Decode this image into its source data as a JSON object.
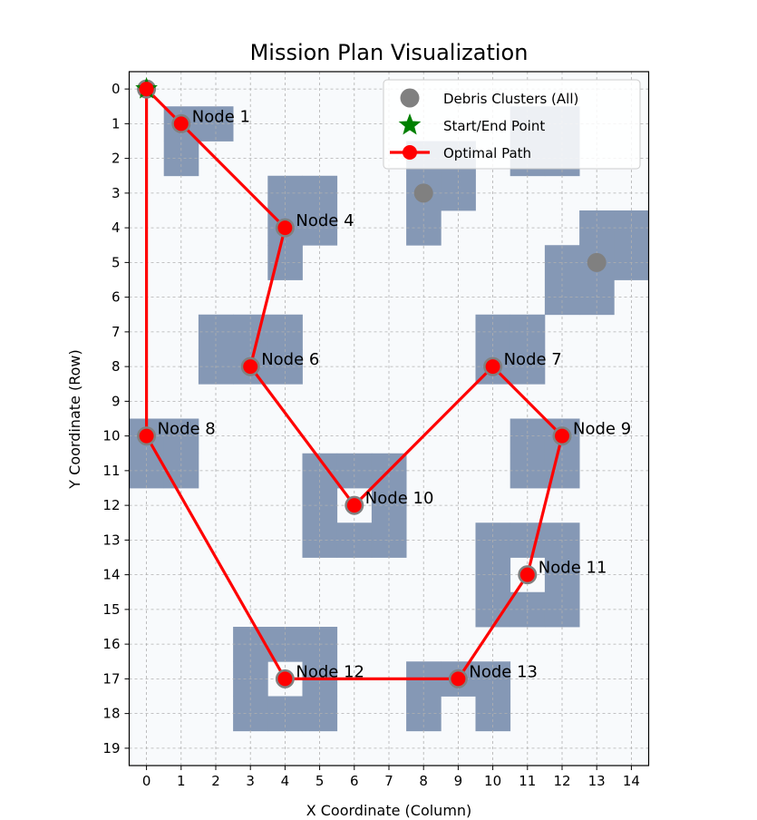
{
  "chart_data": {
    "type": "scatter",
    "title": "Mission Plan Visualization",
    "xlabel": "X Coordinate (Column)",
    "ylabel": "Y Coordinate (Row)",
    "xlim": [
      -0.5,
      14.5
    ],
    "ylim": [
      19.5,
      -0.5
    ],
    "x_ticks": [
      "0",
      "1",
      "2",
      "3",
      "4",
      "5",
      "6",
      "7",
      "8",
      "9",
      "10",
      "11",
      "12",
      "13",
      "14"
    ],
    "y_ticks": [
      "0",
      "1",
      "2",
      "3",
      "4",
      "5",
      "6",
      "7",
      "8",
      "9",
      "10",
      "11",
      "12",
      "13",
      "14",
      "15",
      "16",
      "17",
      "18",
      "19"
    ],
    "grid": true,
    "legend_position": "top-right",
    "colors": {
      "background": "#f8fafc",
      "debris": "#8598b5",
      "cluster_marker": "#808080",
      "path": "#ff0000",
      "start": "#008000"
    },
    "debris_cells": [
      [
        1,
        1
      ],
      [
        2,
        1
      ],
      [
        1,
        2
      ],
      [
        4,
        3
      ],
      [
        5,
        3
      ],
      [
        4,
        4
      ],
      [
        5,
        4
      ],
      [
        4,
        5
      ],
      [
        8,
        2
      ],
      [
        9,
        2
      ],
      [
        8,
        3
      ],
      [
        9,
        3
      ],
      [
        8,
        4
      ],
      [
        11,
        1
      ],
      [
        12,
        1
      ],
      [
        11,
        2
      ],
      [
        12,
        2
      ],
      [
        13,
        4
      ],
      [
        14,
        4
      ],
      [
        12,
        5
      ],
      [
        13,
        5
      ],
      [
        14,
        5
      ],
      [
        12,
        6
      ],
      [
        13,
        6
      ],
      [
        2,
        7
      ],
      [
        3,
        7
      ],
      [
        4,
        7
      ],
      [
        2,
        8
      ],
      [
        3,
        8
      ],
      [
        4,
        8
      ],
      [
        10,
        7
      ],
      [
        11,
        7
      ],
      [
        10,
        8
      ],
      [
        11,
        8
      ],
      [
        0,
        10
      ],
      [
        1,
        10
      ],
      [
        0,
        11
      ],
      [
        1,
        11
      ],
      [
        11,
        10
      ],
      [
        12,
        10
      ],
      [
        11,
        11
      ],
      [
        12,
        11
      ],
      [
        5,
        11
      ],
      [
        6,
        11
      ],
      [
        7,
        11
      ],
      [
        5,
        12
      ],
      [
        7,
        12
      ],
      [
        5,
        13
      ],
      [
        6,
        13
      ],
      [
        7,
        13
      ],
      [
        10,
        13
      ],
      [
        11,
        13
      ],
      [
        12,
        13
      ],
      [
        10,
        14
      ],
      [
        12,
        14
      ],
      [
        10,
        15
      ],
      [
        11,
        15
      ],
      [
        12,
        15
      ],
      [
        3,
        16
      ],
      [
        4,
        16
      ],
      [
        5,
        16
      ],
      [
        3,
        17
      ],
      [
        5,
        17
      ],
      [
        3,
        18
      ],
      [
        4,
        18
      ],
      [
        5,
        18
      ],
      [
        8,
        17
      ],
      [
        9,
        17
      ],
      [
        10,
        17
      ],
      [
        8,
        18
      ],
      [
        10,
        18
      ]
    ],
    "clusters": [
      {
        "x": 0,
        "y": 0
      },
      {
        "x": 1,
        "y": 1
      },
      {
        "x": 4,
        "y": 4
      },
      {
        "x": 8,
        "y": 3
      },
      {
        "x": 13,
        "y": 5
      },
      {
        "x": 3,
        "y": 8
      },
      {
        "x": 10,
        "y": 8
      },
      {
        "x": 0,
        "y": 10
      },
      {
        "x": 12,
        "y": 10
      },
      {
        "x": 6,
        "y": 12
      },
      {
        "x": 11,
        "y": 14
      },
      {
        "x": 4,
        "y": 17
      },
      {
        "x": 9,
        "y": 17
      }
    ],
    "start_point": {
      "x": 0,
      "y": 0
    },
    "path": [
      {
        "x": 0,
        "y": 0
      },
      {
        "x": 1,
        "y": 1
      },
      {
        "x": 4,
        "y": 4
      },
      {
        "x": 3,
        "y": 8
      },
      {
        "x": 6,
        "y": 12
      },
      {
        "x": 10,
        "y": 8
      },
      {
        "x": 12,
        "y": 10
      },
      {
        "x": 11,
        "y": 14
      },
      {
        "x": 9,
        "y": 17
      },
      {
        "x": 4,
        "y": 17
      },
      {
        "x": 0,
        "y": 10
      },
      {
        "x": 0,
        "y": 0
      }
    ],
    "node_labels": [
      {
        "x": 1,
        "y": 1,
        "text": "Node 1"
      },
      {
        "x": 4,
        "y": 4,
        "text": "Node 4"
      },
      {
        "x": 3,
        "y": 8,
        "text": "Node 6"
      },
      {
        "x": 10,
        "y": 8,
        "text": "Node 7"
      },
      {
        "x": 0,
        "y": 10,
        "text": "Node 8"
      },
      {
        "x": 12,
        "y": 10,
        "text": "Node 9"
      },
      {
        "x": 6,
        "y": 12,
        "text": "Node 10"
      },
      {
        "x": 11,
        "y": 14,
        "text": "Node 11"
      },
      {
        "x": 4,
        "y": 17,
        "text": "Node 12"
      },
      {
        "x": 9,
        "y": 17,
        "text": "Node 13"
      }
    ],
    "legend": [
      {
        "label": "Debris Clusters (All)",
        "marker": "circle-gray"
      },
      {
        "label": "Start/End Point",
        "marker": "star-green"
      },
      {
        "label": "Optimal Path",
        "marker": "line-red"
      }
    ]
  }
}
